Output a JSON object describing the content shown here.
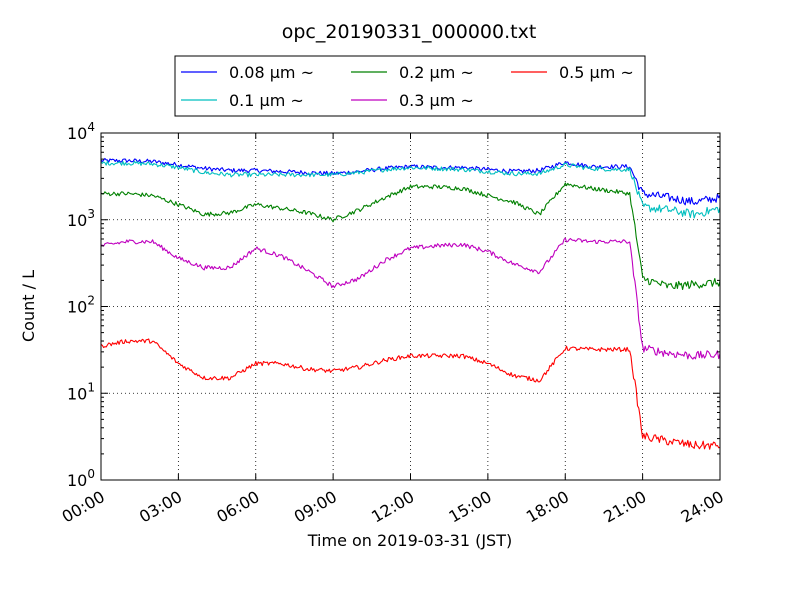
{
  "chart_data": {
    "type": "line",
    "title": "opc_20190331_000000.txt",
    "xlabel": "Time on 2019-03-31 (JST)",
    "ylabel": "Count / L",
    "xlim": [
      "2019-03-31 00:00",
      "2019-04-01 00:00"
    ],
    "ylim": [
      1,
      10000
    ],
    "yscale": "log",
    "grid": true,
    "legend_position": "top-center",
    "xticks": [
      "00:00",
      "03:00",
      "06:00",
      "09:00",
      "12:00",
      "15:00",
      "18:00",
      "21:00",
      "24:00"
    ],
    "yticks": [
      {
        "base": "10",
        "exp": "0"
      },
      {
        "base": "10",
        "exp": "1"
      },
      {
        "base": "10",
        "exp": "2"
      },
      {
        "base": "10",
        "exp": "3"
      },
      {
        "base": "10",
        "exp": "4"
      }
    ],
    "x_hours": [
      0,
      1,
      2,
      3,
      4,
      5,
      6,
      7,
      8,
      9,
      10,
      11,
      12,
      13,
      14,
      15,
      16,
      17,
      18,
      19,
      20,
      20.5,
      21,
      22,
      23,
      24
    ],
    "series": [
      {
        "name": "0.08 μm ~",
        "color": "#0000ff",
        "values": [
          4800,
          4800,
          4700,
          4300,
          3900,
          3700,
          3700,
          3600,
          3500,
          3400,
          3600,
          3900,
          4100,
          4000,
          4000,
          3800,
          3600,
          3700,
          4600,
          4100,
          4100,
          4100,
          2000,
          1800,
          1600,
          1800
        ]
      },
      {
        "name": "0.1 μm ~",
        "color": "#00bfbf",
        "values": [
          4500,
          4500,
          4400,
          4000,
          3500,
          3300,
          3300,
          3300,
          3300,
          3300,
          3500,
          3800,
          4000,
          3900,
          3800,
          3600,
          3400,
          3400,
          4300,
          3900,
          3800,
          3800,
          1400,
          1300,
          1150,
          1350
        ]
      },
      {
        "name": "0.2 μm ~",
        "color": "#008000",
        "values": [
          2000,
          2000,
          1900,
          1500,
          1150,
          1200,
          1500,
          1350,
          1200,
          1000,
          1300,
          1800,
          2400,
          2400,
          2300,
          1900,
          1600,
          1150,
          2600,
          2300,
          2100,
          2000,
          210,
          170,
          180,
          190
        ]
      },
      {
        "name": "0.3 μm ~",
        "color": "#bf00bf",
        "values": [
          500,
          560,
          560,
          360,
          280,
          280,
          470,
          380,
          260,
          170,
          210,
          340,
          470,
          500,
          520,
          430,
          310,
          250,
          590,
          560,
          560,
          560,
          33,
          29,
          27,
          28
        ]
      },
      {
        "name": "0.5 μm ~",
        "color": "#ff0000",
        "values": [
          35,
          40,
          40,
          22,
          15,
          15,
          22,
          22,
          19,
          18,
          20,
          24,
          27,
          27,
          27,
          22,
          16,
          14,
          33,
          32,
          32,
          32,
          3.2,
          2.8,
          2.5,
          2.5
        ]
      }
    ]
  }
}
